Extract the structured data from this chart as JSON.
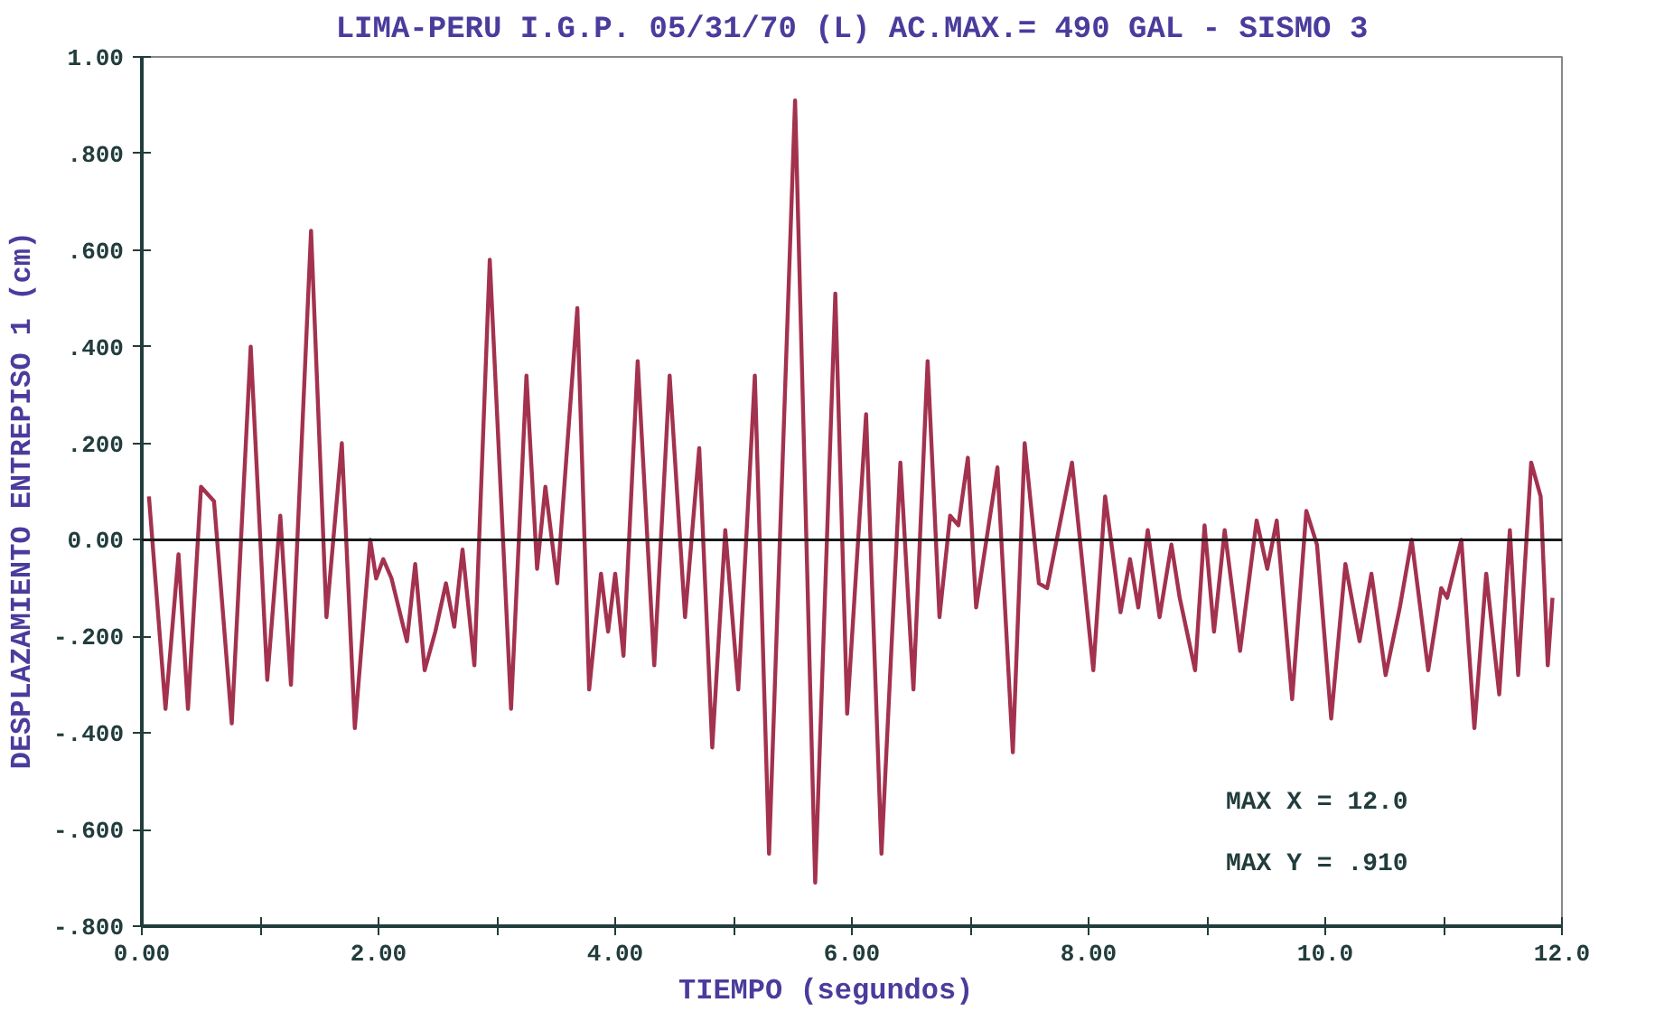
{
  "chart_data": {
    "type": "line",
    "title": "LIMA-PERU I.G.P. 05/31/70 (L) AC.MAX.= 490 GAL - SISMO 3",
    "xlabel": "TIEMPO    (segundos)",
    "ylabel": "DESPLAZAMIENTO ENTREPISO  1 (cm)",
    "xlim": [
      0,
      12
    ],
    "ylim": [
      -0.8,
      1.0
    ],
    "xticks": [
      {
        "value": 0,
        "label": "0.00"
      },
      {
        "value": 1,
        "label": null
      },
      {
        "value": 2,
        "label": "2.00"
      },
      {
        "value": 3,
        "label": null
      },
      {
        "value": 4,
        "label": "4.00"
      },
      {
        "value": 5,
        "label": null
      },
      {
        "value": 6,
        "label": "6.00"
      },
      {
        "value": 7,
        "label": null
      },
      {
        "value": 8,
        "label": "8.00"
      },
      {
        "value": 9,
        "label": null
      },
      {
        "value": 10,
        "label": "10.0"
      },
      {
        "value": 11,
        "label": null
      },
      {
        "value": 12,
        "label": "12.0"
      }
    ],
    "yticks": [
      {
        "value": -0.8,
        "label": "-.800"
      },
      {
        "value": -0.6,
        "label": "-.600"
      },
      {
        "value": -0.4,
        "label": "-.400"
      },
      {
        "value": -0.2,
        "label": "-.200"
      },
      {
        "value": 0,
        "label": "0.00"
      },
      {
        "value": 0.2,
        "label": ".200"
      },
      {
        "value": 0.4,
        "label": ".400"
      },
      {
        "value": 0.6,
        "label": ".600"
      },
      {
        "value": 0.8,
        "label": ".800"
      },
      {
        "value": 1.0,
        "label": "1.00"
      }
    ],
    "grid": false,
    "line_style": "solid",
    "ref_lines": [
      {
        "axis": "y",
        "value": 0,
        "color": "#1a1a1a"
      }
    ],
    "annotations": [
      "MAX X =  12.0",
      "MAX Y =  .910"
    ],
    "series": [
      {
        "color": "#a3324f",
        "x": [
          0.06,
          0.2,
          0.31,
          0.39,
          0.5,
          0.61,
          0.76,
          0.92,
          1.06,
          1.17,
          1.26,
          1.43,
          1.56,
          1.69,
          1.8,
          1.93,
          1.98,
          2.04,
          2.11,
          2.24,
          2.31,
          2.39,
          2.48,
          2.57,
          2.64,
          2.71,
          2.81,
          2.94,
          3.12,
          3.25,
          3.34,
          3.41,
          3.51,
          3.68,
          3.78,
          3.88,
          3.94,
          4.0,
          4.07,
          4.19,
          4.33,
          4.46,
          4.59,
          4.71,
          4.82,
          4.93,
          5.04,
          5.18,
          5.3,
          5.52,
          5.69,
          5.86,
          5.96,
          6.12,
          6.25,
          6.41,
          6.52,
          6.64,
          6.74,
          6.83,
          6.9,
          6.98,
          7.05,
          7.23,
          7.36,
          7.46,
          7.58,
          7.65,
          7.86,
          8.04,
          8.14,
          8.27,
          8.35,
          8.42,
          8.5,
          8.6,
          8.7,
          8.77,
          8.9,
          8.98,
          9.06,
          9.15,
          9.28,
          9.42,
          9.51,
          9.59,
          9.72,
          9.84,
          9.93,
          10.05,
          10.17,
          10.29,
          10.39,
          10.51,
          10.63,
          10.73,
          10.87,
          10.98,
          11.03,
          11.15,
          11.26,
          11.36,
          11.47,
          11.56,
          11.63,
          11.74,
          11.82,
          11.88,
          11.92
        ],
        "values": [
          0.09,
          -0.35,
          -0.03,
          -0.35,
          0.11,
          0.08,
          -0.38,
          0.4,
          -0.29,
          0.05,
          -0.3,
          0.64,
          -0.16,
          0.2,
          -0.39,
          0.0,
          -0.08,
          -0.04,
          -0.08,
          -0.21,
          -0.05,
          -0.27,
          -0.19,
          -0.09,
          -0.18,
          -0.02,
          -0.26,
          0.58,
          -0.35,
          0.34,
          -0.06,
          0.11,
          -0.09,
          0.48,
          -0.31,
          -0.07,
          -0.19,
          -0.07,
          -0.24,
          0.37,
          -0.26,
          0.34,
          -0.16,
          0.19,
          -0.43,
          0.02,
          -0.31,
          0.34,
          -0.65,
          0.91,
          -0.71,
          0.51,
          -0.36,
          0.26,
          -0.65,
          0.16,
          -0.31,
          0.37,
          -0.16,
          0.05,
          0.03,
          0.17,
          -0.14,
          0.15,
          -0.44,
          0.2,
          -0.09,
          -0.1,
          0.16,
          -0.27,
          0.09,
          -0.15,
          -0.04,
          -0.14,
          0.02,
          -0.16,
          -0.01,
          -0.12,
          -0.27,
          0.03,
          -0.19,
          0.02,
          -0.23,
          0.04,
          -0.06,
          0.04,
          -0.33,
          0.06,
          -0.01,
          -0.37,
          -0.05,
          -0.21,
          -0.07,
          -0.28,
          -0.14,
          0.0,
          -0.27,
          -0.1,
          -0.12,
          0.0,
          -0.39,
          -0.07,
          -0.32,
          0.02,
          -0.28,
          0.16,
          0.09,
          -0.26,
          -0.12
        ]
      }
    ]
  }
}
